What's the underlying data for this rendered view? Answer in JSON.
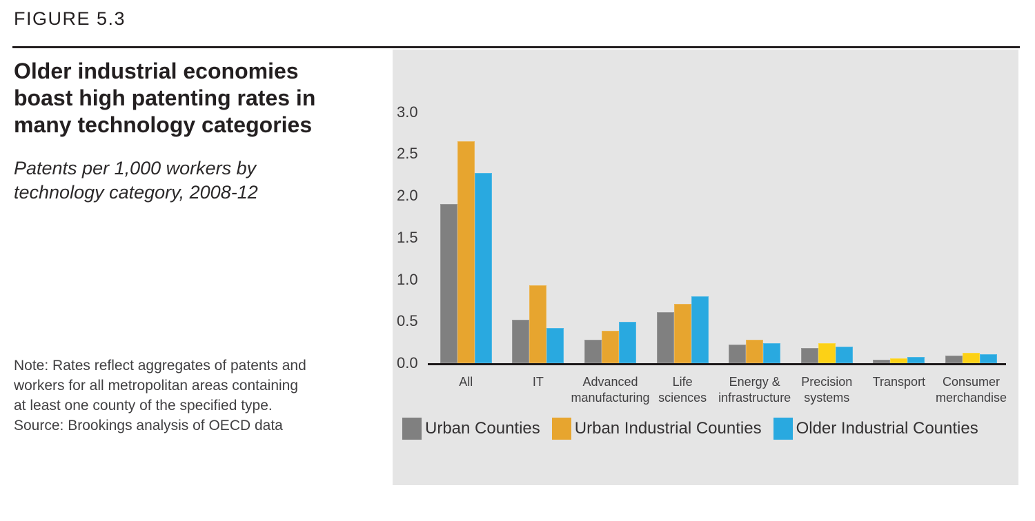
{
  "figure": {
    "label": "FIGURE 5.3",
    "title": "Older industrial economies boast high patenting rates in many technology categories",
    "title_lines": "Older industrial economies\nboast high patenting rates in\nmany technology categories",
    "subtitle": "Patents per 1,000 workers by technology category, 2008-12",
    "subtitle_lines": "Patents per 1,000 workers by\ntechnology category, 2008-12",
    "note_lines": "Note: Rates reflect aggregates of patents and\nworkers for all metropolitan areas containing\nat least one county of the specified type.\nSource: Brookings analysis of OECD data"
  },
  "colors": {
    "panel_bg": "#E5E5E5",
    "gray": "#808080",
    "orange": "#E7A52F",
    "yellow": "#FCD116",
    "blue": "#29A9E0",
    "axis": "#1B1718",
    "text_dark": "#231F20",
    "text_gray": "#414042"
  },
  "chart_data": {
    "type": "bar",
    "title": "Older industrial economies boast high patenting rates in many technology categories",
    "subtitle": "Patents per 1,000 workers by technology category, 2008-12",
    "xlabel": "",
    "ylabel": "Patents per 1,000 workers",
    "ylim": [
      0.0,
      3.0
    ],
    "yticks": [
      0.0,
      0.5,
      1.0,
      1.5,
      2.0,
      2.5,
      3.0
    ],
    "ytick_labels": [
      "0.0",
      "0.5",
      "1.0",
      "1.5",
      "2.0",
      "2.5",
      "3.0"
    ],
    "grid": false,
    "legend_position": "bottom",
    "categories": [
      "All",
      "IT",
      "Advanced manufacturing",
      "Life sciences",
      "Energy & infrastructure",
      "Precision systems",
      "Transport",
      "Consumer merchandise"
    ],
    "category_label_lines": [
      "All",
      "IT",
      "Advanced\nmanufacturing",
      "Life\nsciences",
      "Energy &\ninfrastructure",
      "Precision\nsystems",
      "Transport",
      "Consumer\nmerchandise"
    ],
    "series": [
      {
        "name": "Urban Counties",
        "color": "#808080",
        "values": [
          1.9,
          0.52,
          0.28,
          0.61,
          0.22,
          0.18,
          0.04,
          0.09
        ]
      },
      {
        "name": "Urban Industrial Counties",
        "color": "#E7A52F",
        "values": [
          2.65,
          0.93,
          0.39,
          0.71,
          0.28,
          0.24,
          0.06,
          0.12
        ],
        "bar_colors": [
          "#E7A52F",
          "#E7A52F",
          "#E7A52F",
          "#E7A52F",
          "#E7A52F",
          "#FCD116",
          "#FCD116",
          "#FCD116"
        ]
      },
      {
        "name": "Older Industrial Counties",
        "color": "#29A9E0",
        "values": [
          2.27,
          0.42,
          0.49,
          0.8,
          0.24,
          0.2,
          0.07,
          0.11
        ]
      }
    ]
  }
}
